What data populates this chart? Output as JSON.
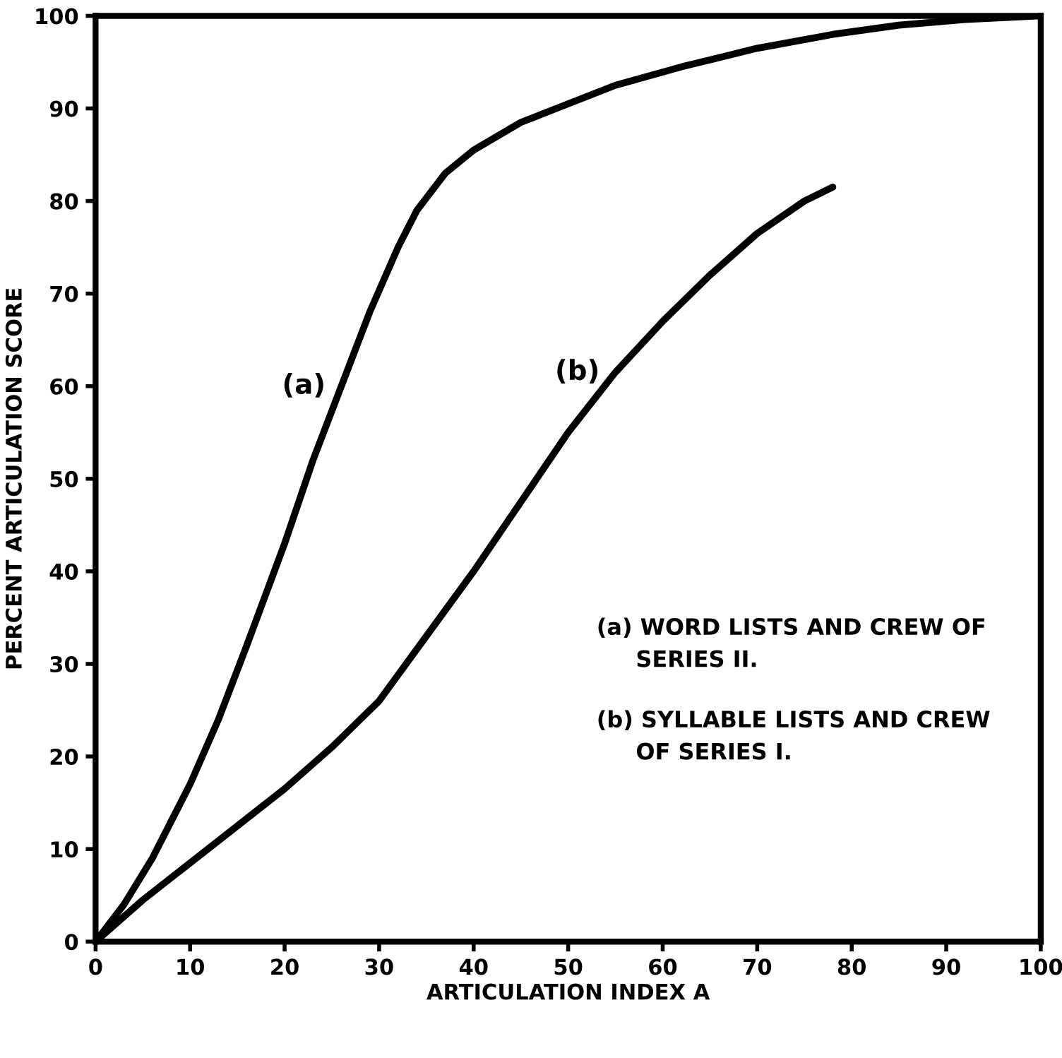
{
  "chart_data": {
    "type": "line",
    "xlabel": "ARTICULATION INDEX A",
    "ylabel": "PERCENT ARTICULATION SCORE",
    "xlim": [
      0,
      100
    ],
    "ylim": [
      0,
      100
    ],
    "xticks": [
      0,
      10,
      20,
      30,
      40,
      50,
      60,
      70,
      80,
      90,
      100
    ],
    "yticks": [
      0,
      10,
      20,
      30,
      40,
      50,
      60,
      70,
      80,
      90,
      100
    ],
    "grid": false,
    "marker": "none",
    "line_style": "solid",
    "series": [
      {
        "name": "(a)",
        "color": "#000000",
        "x": [
          0,
          3,
          6,
          10,
          13,
          16,
          20,
          23,
          26,
          29,
          32,
          34,
          37,
          40,
          45,
          50,
          55,
          62,
          70,
          78,
          85,
          92,
          100
        ],
        "values": [
          0,
          4,
          9,
          17,
          24,
          32,
          43,
          52,
          60,
          68,
          75,
          79,
          83,
          85.5,
          88.5,
          90.5,
          92.5,
          94.5,
          96.5,
          98,
          99,
          99.6,
          100
        ]
      },
      {
        "name": "(b)",
        "color": "#000000",
        "x": [
          0,
          5,
          10,
          15,
          20,
          25,
          30,
          35,
          40,
          45,
          50,
          55,
          60,
          65,
          70,
          75,
          78
        ],
        "values": [
          0,
          4.5,
          8.5,
          12.5,
          16.5,
          21,
          26,
          33,
          40,
          47.5,
          55,
          61.5,
          67,
          72,
          76.5,
          80,
          81.5
        ]
      }
    ],
    "annotations": [
      "(a) WORD LISTS AND CREW OF\n     SERIES II.",
      "(b) SYLLABLE LISTS AND CREW\n     OF SERIES I."
    ]
  }
}
